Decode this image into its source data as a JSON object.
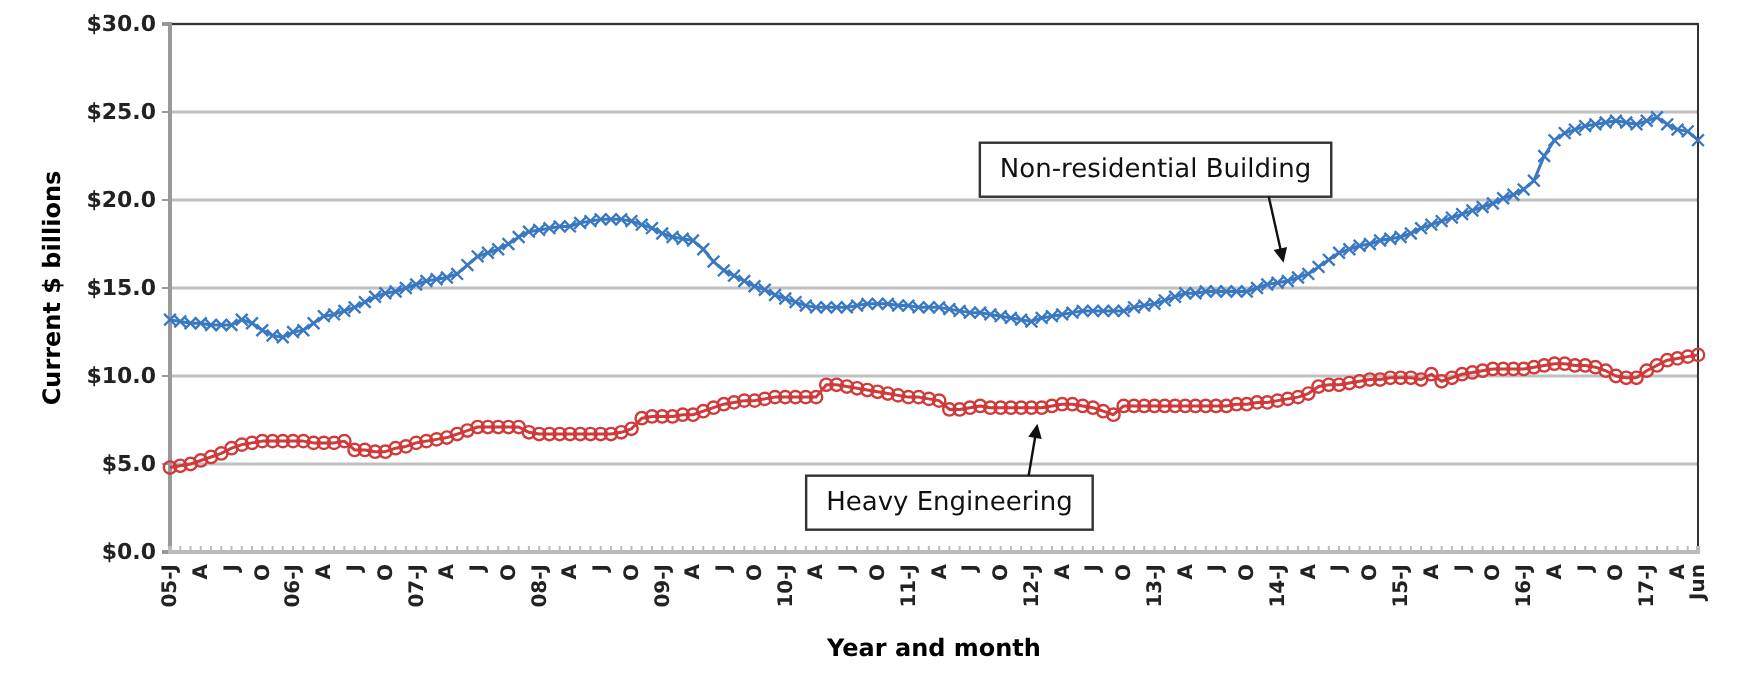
{
  "chart_data": {
    "type": "line",
    "xlabel": "Year and month",
    "ylabel": "Current $ billions",
    "categories": [
      "05-J",
      null,
      null,
      "A",
      null,
      null,
      "J",
      null,
      null,
      "O",
      null,
      null,
      "06-J",
      null,
      null,
      "A",
      null,
      null,
      "J",
      null,
      null,
      "O",
      null,
      null,
      "07-J",
      null,
      null,
      "A",
      null,
      null,
      "J",
      null,
      null,
      "O",
      null,
      null,
      "08-J",
      null,
      null,
      "A",
      null,
      null,
      "J",
      null,
      null,
      "O",
      null,
      null,
      "09-J",
      null,
      null,
      "A",
      null,
      null,
      "J",
      null,
      null,
      "O",
      null,
      null,
      "10-J",
      null,
      null,
      "A",
      null,
      null,
      "J",
      null,
      null,
      "O",
      null,
      null,
      "11-J",
      null,
      null,
      "A",
      null,
      null,
      "J",
      null,
      null,
      "O",
      null,
      null,
      "12-J",
      null,
      null,
      "A",
      null,
      null,
      "J",
      null,
      null,
      "O",
      null,
      null,
      "13-J",
      null,
      null,
      "A",
      null,
      null,
      "J",
      null,
      null,
      "O",
      null,
      null,
      "14-J",
      null,
      null,
      "A",
      null,
      null,
      "J",
      null,
      null,
      "O",
      null,
      null,
      "15-J",
      null,
      null,
      "A",
      null,
      null,
      "J",
      null,
      null,
      "O",
      null,
      null,
      "16-J",
      null,
      null,
      "A",
      null,
      null,
      "J",
      null,
      null,
      "O",
      null,
      null,
      "17-J",
      null,
      null,
      "A",
      null,
      "Jun"
    ],
    "series": [
      {
        "name": "Non-residential Building",
        "color": "#3a78c2",
        "marker": "cross",
        "values": [
          13.2,
          13.1,
          13.0,
          13.0,
          12.9,
          12.9,
          12.9,
          13.2,
          13.0,
          12.6,
          12.3,
          12.2,
          12.5,
          12.6,
          13.0,
          13.4,
          13.5,
          13.7,
          13.9,
          14.2,
          14.5,
          14.7,
          14.8,
          15.0,
          15.2,
          15.4,
          15.5,
          15.6,
          15.8,
          16.3,
          16.8,
          17.0,
          17.2,
          17.5,
          17.9,
          18.2,
          18.3,
          18.4,
          18.5,
          18.5,
          18.7,
          18.8,
          18.9,
          18.9,
          18.9,
          18.8,
          18.6,
          18.4,
          18.1,
          17.9,
          17.8,
          17.7,
          17.2,
          16.5,
          16.0,
          15.7,
          15.4,
          15.1,
          14.9,
          14.6,
          14.4,
          14.2,
          14.0,
          13.9,
          13.9,
          13.9,
          13.9,
          14.0,
          14.1,
          14.1,
          14.1,
          14.0,
          14.0,
          13.9,
          13.9,
          13.9,
          13.8,
          13.7,
          13.6,
          13.6,
          13.5,
          13.4,
          13.3,
          13.2,
          13.1,
          13.3,
          13.4,
          13.5,
          13.6,
          13.7,
          13.7,
          13.7,
          13.7,
          13.7,
          13.9,
          14.0,
          14.1,
          14.3,
          14.5,
          14.7,
          14.7,
          14.8,
          14.8,
          14.8,
          14.8,
          14.8,
          15.0,
          15.2,
          15.3,
          15.4,
          15.6,
          15.8,
          16.2,
          16.6,
          17.0,
          17.2,
          17.4,
          17.5,
          17.7,
          17.8,
          17.9,
          18.1,
          18.4,
          18.6,
          18.8,
          19.0,
          19.2,
          19.4,
          19.6,
          19.8,
          20.1,
          20.3,
          20.6,
          21.1,
          22.5,
          23.4,
          23.8,
          24.0,
          24.2,
          24.3,
          24.4,
          24.5,
          24.4,
          24.3,
          24.5,
          24.7,
          24.3,
          24.0,
          23.9,
          23.4
        ]
      },
      {
        "name": "Heavy Engineering",
        "color": "#d03a3a",
        "marker": "circle",
        "values": [
          4.8,
          4.9,
          5.0,
          5.2,
          5.4,
          5.6,
          5.9,
          6.1,
          6.2,
          6.3,
          6.3,
          6.3,
          6.3,
          6.3,
          6.2,
          6.2,
          6.2,
          6.3,
          5.8,
          5.8,
          5.7,
          5.7,
          5.9,
          6.0,
          6.2,
          6.3,
          6.4,
          6.5,
          6.7,
          6.9,
          7.1,
          7.1,
          7.1,
          7.1,
          7.1,
          6.8,
          6.7,
          6.7,
          6.7,
          6.7,
          6.7,
          6.7,
          6.7,
          6.7,
          6.8,
          7.0,
          7.6,
          7.7,
          7.7,
          7.7,
          7.8,
          7.8,
          8.0,
          8.2,
          8.4,
          8.5,
          8.6,
          8.6,
          8.7,
          8.8,
          8.8,
          8.8,
          8.8,
          8.8,
          9.5,
          9.5,
          9.4,
          9.3,
          9.2,
          9.1,
          9.0,
          8.9,
          8.8,
          8.8,
          8.7,
          8.6,
          8.1,
          8.1,
          8.2,
          8.3,
          8.2,
          8.2,
          8.2,
          8.2,
          8.2,
          8.2,
          8.3,
          8.4,
          8.4,
          8.3,
          8.2,
          8.0,
          7.8,
          8.3,
          8.3,
          8.3,
          8.3,
          8.3,
          8.3,
          8.3,
          8.3,
          8.3,
          8.3,
          8.3,
          8.4,
          8.4,
          8.5,
          8.5,
          8.6,
          8.7,
          8.8,
          9.0,
          9.4,
          9.5,
          9.5,
          9.6,
          9.7,
          9.8,
          9.8,
          9.9,
          9.9,
          9.9,
          9.8,
          10.1,
          9.7,
          9.9,
          10.1,
          10.2,
          10.3,
          10.4,
          10.4,
          10.4,
          10.4,
          10.5,
          10.6,
          10.7,
          10.7,
          10.6,
          10.6,
          10.5,
          10.3,
          10.0,
          9.9,
          9.9,
          10.3,
          10.6,
          10.9,
          11.0,
          11.1,
          11.2
        ]
      }
    ],
    "ylim": [
      0,
      30
    ],
    "yticks": [
      {
        "value": 0,
        "label": "$0.0"
      },
      {
        "value": 5,
        "label": "$5.0"
      },
      {
        "value": 10,
        "label": "$10.0"
      },
      {
        "value": 15,
        "label": "$15.0"
      },
      {
        "value": 20,
        "label": "$20.0"
      },
      {
        "value": 25,
        "label": "$25.0"
      },
      {
        "value": 30,
        "label": "$30.0"
      }
    ],
    "grid": "y",
    "legend": false,
    "line_style": "solid"
  }
}
